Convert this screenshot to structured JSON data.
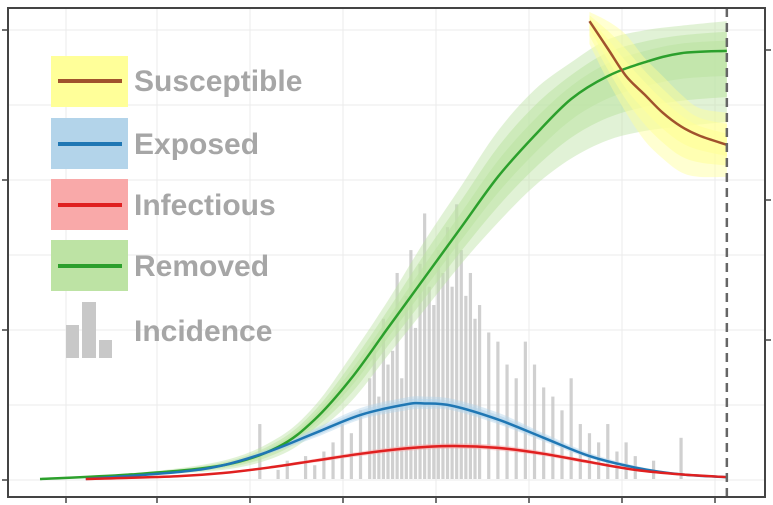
{
  "chart_data": {
    "type": "line",
    "title": "",
    "xlabel": "",
    "ylabel": "",
    "grid": true,
    "legend_placement": "top-left",
    "x_range": [
      0,
      76
    ],
    "y_range": [
      0,
      1.02
    ],
    "cutoff_line": {
      "x": 75,
      "style": "dashed"
    },
    "legend": [
      {
        "key": "susceptible",
        "label": "Susceptible",
        "line_color": "#a0522d",
        "fill_color": "#ffff99"
      },
      {
        "key": "exposed",
        "label": "Exposed",
        "line_color": "#1f77b4",
        "fill_color": "#b3d4ea"
      },
      {
        "key": "infectious",
        "label": "Infectious",
        "line_color": "#e02020",
        "fill_color": "#f9a9a9"
      },
      {
        "key": "removed",
        "label": "Removed",
        "line_color": "#2ca02c",
        "fill_color": "#bde3a4"
      },
      {
        "key": "incidence",
        "label": "Incidence",
        "line_color": "#c8c8c8",
        "fill_color": "#c8c8c8"
      }
    ],
    "series": [
      {
        "key": "removed",
        "x": [
          0,
          10,
          20,
          26,
          30,
          34,
          38,
          42,
          46,
          50,
          54,
          58,
          62,
          66,
          70,
          75
        ],
        "y": [
          0,
          0.01,
          0.03,
          0.07,
          0.13,
          0.22,
          0.33,
          0.44,
          0.55,
          0.66,
          0.75,
          0.83,
          0.88,
          0.91,
          0.93,
          0.935
        ],
        "band_low": [
          0,
          0.008,
          0.02,
          0.05,
          0.1,
          0.17,
          0.27,
          0.37,
          0.47,
          0.56,
          0.64,
          0.7,
          0.74,
          0.76,
          0.77,
          0.78
        ],
        "band_high": [
          0,
          0.012,
          0.04,
          0.09,
          0.16,
          0.27,
          0.39,
          0.52,
          0.64,
          0.76,
          0.85,
          0.91,
          0.96,
          0.98,
          0.99,
          1.0
        ]
      },
      {
        "key": "exposed",
        "x": [
          5,
          15,
          20,
          25,
          30,
          35,
          40,
          42,
          45,
          50,
          55,
          60,
          65,
          70,
          75
        ],
        "y": [
          0,
          0.015,
          0.03,
          0.06,
          0.1,
          0.14,
          0.163,
          0.165,
          0.16,
          0.13,
          0.09,
          0.05,
          0.025,
          0.01,
          0.004
        ],
        "band_low": [
          0,
          0.013,
          0.027,
          0.055,
          0.09,
          0.13,
          0.15,
          0.153,
          0.15,
          0.12,
          0.082,
          0.045,
          0.022,
          0.009,
          0.003
        ],
        "band_high": [
          0,
          0.017,
          0.033,
          0.066,
          0.11,
          0.155,
          0.178,
          0.18,
          0.175,
          0.145,
          0.1,
          0.057,
          0.029,
          0.012,
          0.005
        ]
      },
      {
        "key": "infectious",
        "x": [
          5,
          15,
          20,
          25,
          30,
          35,
          40,
          45,
          50,
          55,
          60,
          65,
          70,
          75
        ],
        "y": [
          0,
          0.006,
          0.013,
          0.025,
          0.04,
          0.055,
          0.067,
          0.072,
          0.068,
          0.055,
          0.037,
          0.02,
          0.01,
          0.004
        ],
        "band_low": [
          0,
          0.005,
          0.011,
          0.022,
          0.036,
          0.05,
          0.061,
          0.066,
          0.062,
          0.05,
          0.033,
          0.018,
          0.009,
          0.003
        ],
        "band_high": [
          0,
          0.007,
          0.015,
          0.028,
          0.044,
          0.06,
          0.073,
          0.078,
          0.074,
          0.06,
          0.041,
          0.022,
          0.011,
          0.005
        ]
      },
      {
        "key": "susceptible",
        "x": [
          60,
          62,
          64,
          66,
          68,
          70,
          72,
          75
        ],
        "y": [
          1.0,
          0.94,
          0.88,
          0.84,
          0.8,
          0.77,
          0.75,
          0.73
        ],
        "band_low": [
          0.95,
          0.87,
          0.8,
          0.74,
          0.7,
          0.67,
          0.66,
          0.66
        ],
        "band_high": [
          1.02,
          1.0,
          0.97,
          0.92,
          0.88,
          0.84,
          0.81,
          0.8
        ]
      }
    ],
    "incidence": {
      "key": "incidence",
      "x": [
        24,
        26,
        27,
        29,
        30,
        31,
        32,
        33,
        34,
        35,
        36,
        36.5,
        37,
        37.5,
        38,
        38.5,
        39,
        39.5,
        40,
        40.5,
        41,
        41.5,
        42,
        42.5,
        43,
        43.5,
        44,
        44.5,
        45,
        45.5,
        46,
        46.5,
        47,
        47.5,
        48,
        49,
        50,
        51,
        52,
        53,
        54,
        55,
        56,
        57,
        58,
        59,
        60,
        61,
        62,
        63,
        64,
        65,
        67,
        70
      ],
      "y": [
        0.12,
        0.02,
        0.04,
        0.05,
        0.03,
        0.06,
        0.08,
        0.12,
        0.1,
        0.15,
        0.22,
        0.3,
        0.18,
        0.35,
        0.25,
        0.28,
        0.45,
        0.22,
        0.4,
        0.5,
        0.33,
        0.47,
        0.58,
        0.42,
        0.38,
        0.5,
        0.45,
        0.55,
        0.42,
        0.6,
        0.5,
        0.4,
        0.45,
        0.35,
        0.38,
        0.32,
        0.3,
        0.25,
        0.22,
        0.3,
        0.25,
        0.2,
        0.18,
        0.15,
        0.22,
        0.12,
        0.1,
        0.08,
        0.12,
        0.06,
        0.08,
        0.05,
        0.04,
        0.09
      ]
    }
  }
}
